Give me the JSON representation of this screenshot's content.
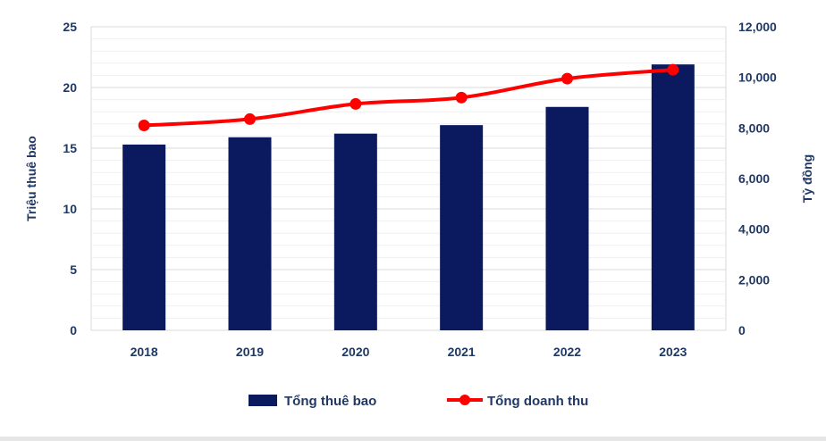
{
  "chart_data": {
    "type": "bar",
    "categories": [
      "2018",
      "2019",
      "2020",
      "2021",
      "2022",
      "2023"
    ],
    "series": [
      {
        "name": "Tổng thuê bao",
        "type": "bar",
        "axis": "left",
        "color": "#0b1a5e",
        "values": [
          15.3,
          15.9,
          16.2,
          16.9,
          18.4,
          21.9
        ]
      },
      {
        "name": "Tổng doanh thu",
        "type": "line",
        "axis": "right",
        "color": "#ff0000",
        "values": [
          8100,
          8350,
          8950,
          9200,
          9950,
          10300
        ]
      }
    ],
    "ylabel": "Triệu thuê bao",
    "y2label": "Tỷ đồng",
    "ylim": [
      0,
      25
    ],
    "y2lim": [
      0,
      12000
    ],
    "yticks": [
      "0",
      "5",
      "10",
      "15",
      "20",
      "25"
    ],
    "y2ticks": [
      "0",
      "2,000",
      "4,000",
      "6,000",
      "8,000",
      "10,000",
      "12,000"
    ],
    "grid": true,
    "legend": "bottom-center"
  }
}
